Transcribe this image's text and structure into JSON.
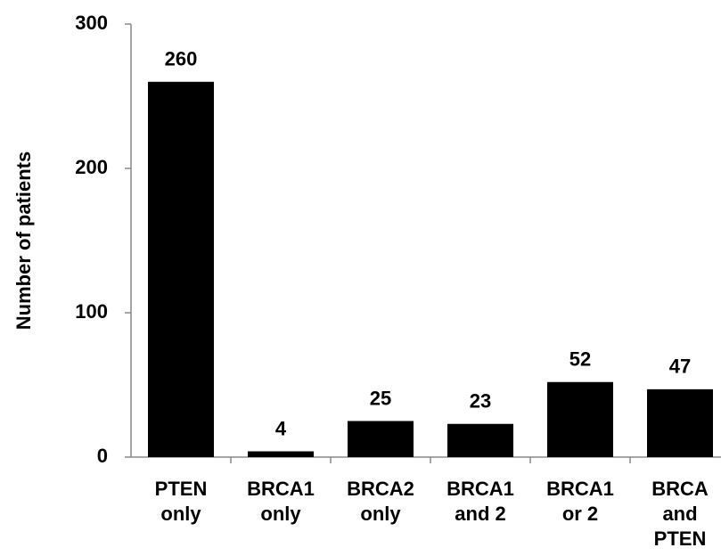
{
  "chart_data": {
    "type": "bar",
    "y_label": "Number of patients",
    "categories": [
      "PTEN\nonly",
      "BRCA1\nonly",
      "BRCA2\nonly",
      "BRCA1\nand 2",
      "BRCA1\nor 2",
      "BRCA\nand\nPTEN"
    ],
    "values": [
      260,
      4,
      25,
      23,
      52,
      47
    ],
    "color": "#000000",
    "ylim": [
      0,
      300
    ],
    "yticks": [
      0,
      100,
      200,
      300
    ],
    "grid": false
  }
}
